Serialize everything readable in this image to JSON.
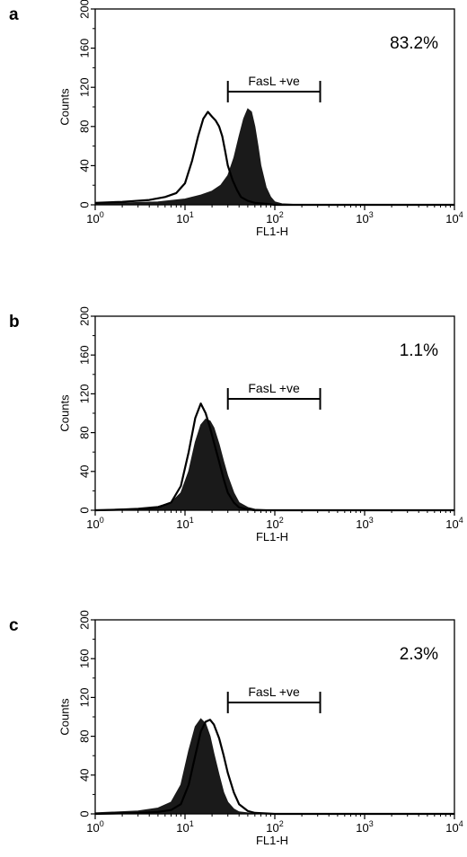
{
  "chart_data": [
    {
      "type": "histogram",
      "panel": "a",
      "xlabel": "FL1-H",
      "ylabel": "Counts",
      "xscale": "log",
      "xlim": [
        1,
        10000
      ],
      "ylim": [
        0,
        200
      ],
      "xticks": [
        "10",
        "10",
        "10",
        "10",
        "10"
      ],
      "xtick_exponents": [
        "0",
        "1",
        "2",
        "3",
        "4"
      ],
      "yticks": [
        "0",
        "40",
        "80",
        "120",
        "160",
        "200"
      ],
      "annotation": "83.2%",
      "gate": {
        "label": "FasL +ve",
        "from": 30,
        "to": 320
      },
      "series": [
        {
          "style": "open",
          "x": [
            1,
            2,
            4,
            6,
            8,
            10,
            12,
            14,
            16,
            18,
            20,
            22,
            24,
            26,
            28,
            30,
            34,
            38,
            42,
            50,
            60,
            80,
            100,
            200,
            1000,
            10000
          ],
          "y": [
            2,
            3,
            5,
            8,
            12,
            22,
            45,
            70,
            88,
            95,
            90,
            86,
            80,
            70,
            55,
            40,
            25,
            15,
            8,
            4,
            2,
            1,
            0,
            0,
            0,
            0
          ]
        },
        {
          "style": "filled",
          "x": [
            1,
            5,
            10,
            15,
            20,
            25,
            30,
            35,
            40,
            45,
            50,
            55,
            60,
            65,
            70,
            80,
            90,
            100,
            120,
            200,
            1000,
            10000
          ],
          "y": [
            1,
            3,
            6,
            10,
            14,
            20,
            30,
            48,
            70,
            88,
            98,
            95,
            80,
            60,
            40,
            18,
            8,
            3,
            1,
            0,
            0,
            0
          ]
        }
      ]
    },
    {
      "type": "histogram",
      "panel": "b",
      "xlabel": "FL1-H",
      "ylabel": "Counts",
      "xscale": "log",
      "xlim": [
        1,
        10000
      ],
      "ylim": [
        0,
        200
      ],
      "xticks": [
        "10",
        "10",
        "10",
        "10",
        "10"
      ],
      "xtick_exponents": [
        "0",
        "1",
        "2",
        "3",
        "4"
      ],
      "yticks": [
        "0",
        "40",
        "80",
        "120",
        "160",
        "200"
      ],
      "annotation": "1.1%",
      "gate": {
        "label": "FasL +ve",
        "from": 30,
        "to": 320
      },
      "series": [
        {
          "style": "open",
          "x": [
            1,
            3,
            5,
            7,
            9,
            11,
            13,
            15,
            17,
            19,
            21,
            24,
            27,
            30,
            35,
            40,
            50,
            60,
            100,
            10000
          ],
          "y": [
            0,
            1,
            3,
            8,
            25,
            60,
            95,
            110,
            100,
            85,
            70,
            50,
            32,
            18,
            8,
            3,
            1,
            0,
            0,
            0
          ]
        },
        {
          "style": "filled",
          "x": [
            1,
            3,
            5,
            7,
            9,
            11,
            13,
            15,
            17,
            19,
            21,
            24,
            27,
            30,
            35,
            40,
            50,
            60,
            100,
            10000
          ],
          "y": [
            0,
            2,
            4,
            8,
            18,
            40,
            70,
            88,
            94,
            92,
            85,
            68,
            50,
            35,
            18,
            8,
            3,
            1,
            0,
            0
          ]
        }
      ]
    },
    {
      "type": "histogram",
      "panel": "c",
      "xlabel": "FL1-H",
      "ylabel": "Counts",
      "xscale": "log",
      "xlim": [
        1,
        10000
      ],
      "ylim": [
        0,
        200
      ],
      "xticks": [
        "10",
        "10",
        "10",
        "10",
        "10"
      ],
      "xtick_exponents": [
        "0",
        "1",
        "2",
        "3",
        "4"
      ],
      "yticks": [
        "0",
        "40",
        "80",
        "120",
        "160",
        "200"
      ],
      "annotation": "2.3%",
      "gate": {
        "label": "FasL +ve",
        "from": 30,
        "to": 320
      },
      "series": [
        {
          "style": "open",
          "x": [
            1,
            3,
            5,
            7,
            9,
            11,
            13,
            15,
            17,
            19,
            21,
            24,
            27,
            30,
            35,
            40,
            50,
            60,
            100,
            10000
          ],
          "y": [
            0,
            1,
            2,
            4,
            10,
            30,
            60,
            85,
            95,
            97,
            92,
            78,
            60,
            42,
            22,
            10,
            3,
            1,
            0,
            0
          ]
        },
        {
          "style": "filled",
          "x": [
            1,
            3,
            5,
            7,
            9,
            11,
            13,
            15,
            17,
            19,
            21,
            24,
            27,
            30,
            35,
            40,
            50,
            60,
            100,
            10000
          ],
          "y": [
            1,
            3,
            6,
            12,
            30,
            65,
            90,
            98,
            93,
            80,
            62,
            40,
            22,
            12,
            5,
            2,
            1,
            0,
            0,
            0
          ]
        }
      ]
    }
  ]
}
